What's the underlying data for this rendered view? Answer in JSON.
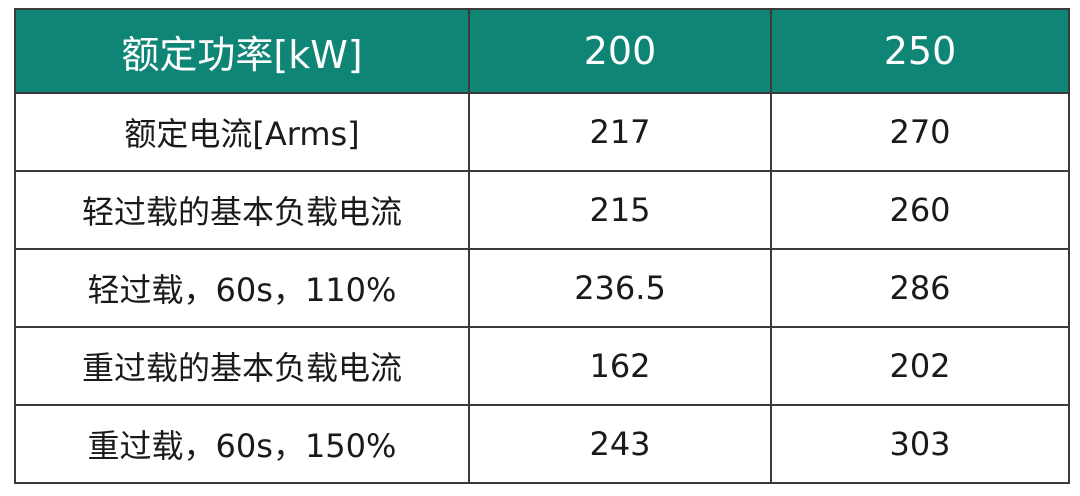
{
  "table": {
    "header": [
      "额定功率[kW]",
      "200",
      "250"
    ],
    "rows": [
      [
        "额定电流[Arms]",
        "217",
        "270"
      ],
      [
        "轻过载的基本负载电流",
        "215",
        "260"
      ],
      [
        "轻过载，60s，110%",
        "236.5",
        "286"
      ],
      [
        "重过载的基本负载电流",
        "162",
        "202"
      ],
      [
        "重过载，60s，150%",
        "243",
        "303"
      ]
    ]
  }
}
